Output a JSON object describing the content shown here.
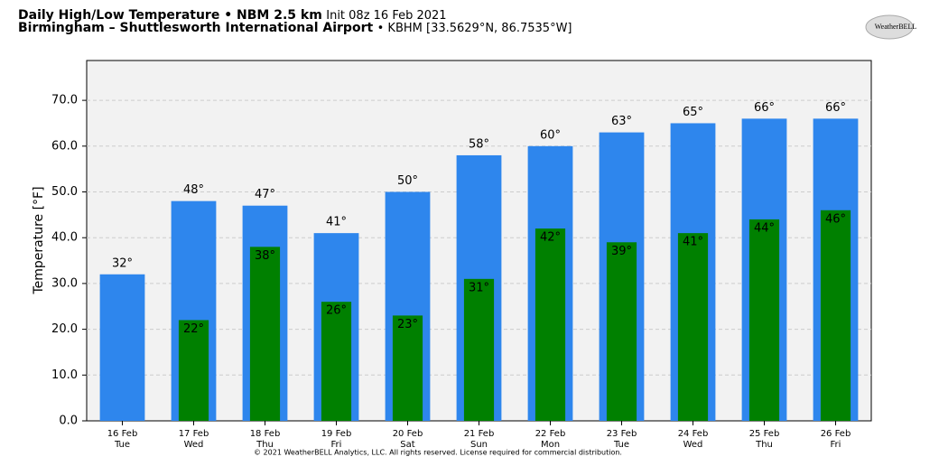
{
  "chart_data": {
    "type": "bar",
    "title": "Daily High/Low Temperature • NBM 2.5 km",
    "title_note": "Init 08z 16 Feb 2021",
    "subtitle": "Birmingham – Shuttlesworth International Airport",
    "subtitle_note": "• KBHM [33.5629°N, 86.7535°W]",
    "logo": "WeatherBELL",
    "footer": "© 2021 WeatherBELL Analytics, LLC. All rights reserved. License required for commercial distribution.",
    "y_label": "Temperature [°F]",
    "categories": [
      "16 Feb",
      "17 Feb",
      "18 Feb",
      "19 Feb",
      "20 Feb",
      "21 Feb",
      "22 Feb",
      "23 Feb",
      "24 Feb",
      "25 Feb",
      "26 Feb"
    ],
    "weekdays": [
      "Tue",
      "Wed",
      "Thu",
      "Fri",
      "Sat",
      "Sun",
      "Mon",
      "Tue",
      "Wed",
      "Thu",
      "Fri"
    ],
    "series": [
      {
        "color": "#2e86ed",
        "values": [
          32,
          48,
          47,
          41,
          50,
          58,
          60,
          63,
          65,
          66,
          66
        ],
        "value_labels": [
          "32°",
          "48°",
          "47°",
          "41°",
          "50°",
          "58°",
          "60°",
          "63°",
          "65°",
          "66°",
          "66°"
        ]
      },
      {
        "color": "#008000",
        "values": [
          null,
          22,
          38,
          26,
          23,
          31,
          42,
          39,
          41,
          44,
          46
        ],
        "value_labels": [
          null,
          "22°",
          "38°",
          "26°",
          "23°",
          "31°",
          "42°",
          "39°",
          "41°",
          "44°",
          "46°"
        ]
      }
    ],
    "ylim": [
      0,
      78.7
    ],
    "yticks": [
      {
        "value": 0,
        "label": "0.0"
      },
      {
        "value": 10,
        "label": "10.0"
      },
      {
        "value": 20,
        "label": "20.0"
      },
      {
        "value": 30,
        "label": "30.0"
      },
      {
        "value": 40,
        "label": "40.0"
      },
      {
        "value": 50,
        "label": "50.0"
      },
      {
        "value": 60,
        "label": "60.0"
      },
      {
        "value": 70,
        "label": "70.0"
      }
    ],
    "grid": true
  }
}
